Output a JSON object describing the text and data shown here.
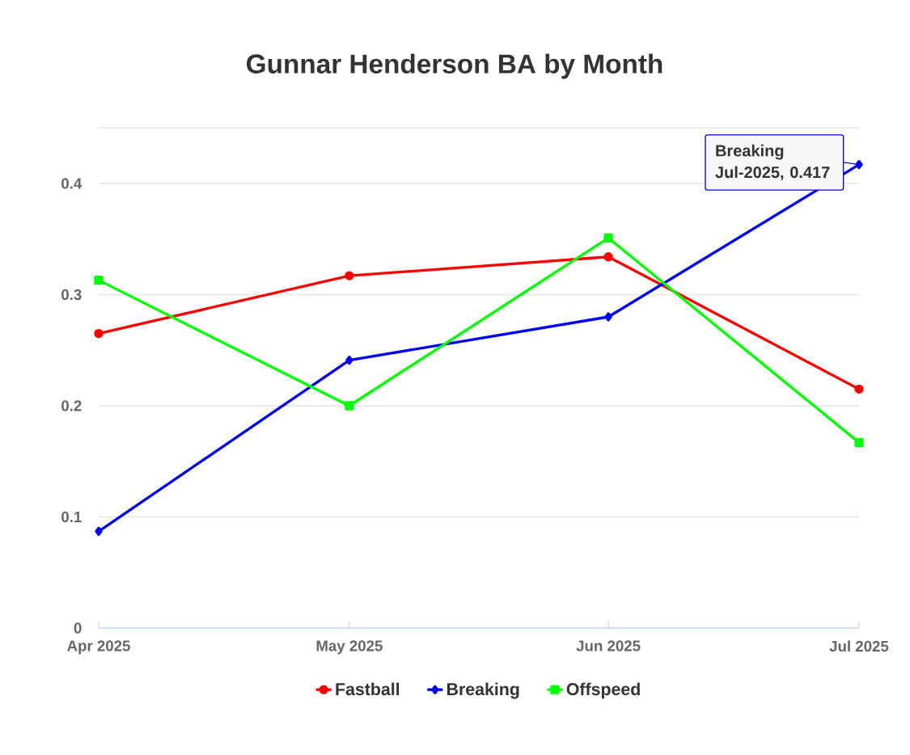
{
  "chart_data": {
    "type": "line",
    "title": "Gunnar Henderson BA by Month",
    "x": [
      "2025-04",
      "2025-05",
      "2025-06",
      "2025-07"
    ],
    "series": [
      {
        "name": "Fastball",
        "color": "#ff0000",
        "marker": "circle",
        "values": [
          0.265,
          0.317,
          0.334,
          0.215
        ]
      },
      {
        "name": "Breaking",
        "color": "#0000ff",
        "marker": "diamond",
        "values": [
          0.087,
          0.241,
          0.28,
          0.417
        ]
      },
      {
        "name": "Offspeed",
        "color": "#00ff00",
        "marker": "square",
        "values": [
          0.313,
          0.2,
          0.351,
          0.167
        ]
      }
    ],
    "xlim": [
      "2025-04",
      "2025-07"
    ],
    "xticks": [
      {
        "value": "2025-04",
        "label": "Apr 2025"
      },
      {
        "value": "2025-05",
        "label": "May 2025"
      },
      {
        "value": "2025-06",
        "label": "Jun 2025"
      },
      {
        "value": "2025-07",
        "label": "Jul 2025"
      }
    ],
    "ylim": [
      0,
      0.45
    ],
    "yticks": [
      0,
      0.1,
      0.2,
      0.3,
      0.4,
      {
        "value": 0.45,
        "label": null
      }
    ],
    "grid": "y",
    "legend": "bottom",
    "line_style": "solid",
    "annotations": [
      {
        "text": "Breaking Jul-2025, 0.417",
        "x": "2025-07",
        "y": 0.417
      }
    ]
  }
}
